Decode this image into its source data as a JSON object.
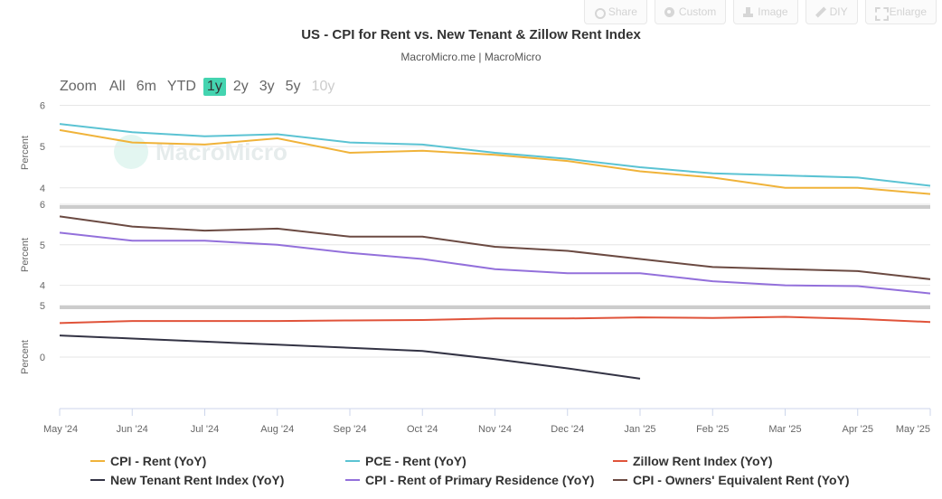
{
  "toolbar": {
    "share": "Share",
    "custom": "Custom",
    "image": "Image",
    "diy": "DIY",
    "enlarge": "Enlarge"
  },
  "title": "US - CPI for Rent vs. New Tenant & Zillow Rent Index",
  "subtitle": "MacroMicro.me | MacroMicro",
  "watermark": "MacroMicro",
  "zoom": {
    "label": "Zoom",
    "options": [
      "All",
      "6m",
      "YTD",
      "1y",
      "2y",
      "3y",
      "5y",
      "10y"
    ],
    "selected": "1y",
    "disabled": [
      "10y"
    ]
  },
  "colors": {
    "cpi_rent": "#f0b33a",
    "pce_rent": "#5bc3d3",
    "zillow": "#e0533a",
    "new_tenant": "#333344",
    "primary_residence": "#9370db",
    "oer": "#6b4a42"
  },
  "chart_data": {
    "type": "line",
    "x": [
      "May '24",
      "Jun '24",
      "Jul '24",
      "Aug '24",
      "Sep '24",
      "Oct '24",
      "Nov '24",
      "Dec '24",
      "Jan '25",
      "Feb '25",
      "Mar '25",
      "Apr '25",
      "May '25"
    ],
    "panels": [
      {
        "ylabel": "Percent",
        "yticks": [
          4,
          5,
          6
        ],
        "ylim": [
          3.6,
          6.1
        ],
        "series": [
          {
            "name": "CPI - Rent (YoY)",
            "color_key": "cpi_rent",
            "values": [
              5.4,
              5.1,
              5.05,
              5.2,
              4.85,
              4.9,
              4.8,
              4.65,
              4.4,
              4.25,
              4.0,
              4.0,
              3.85
            ]
          },
          {
            "name": "PCE - Rent (YoY)",
            "color_key": "pce_rent",
            "values": [
              5.55,
              5.35,
              5.25,
              5.3,
              5.1,
              5.05,
              4.85,
              4.7,
              4.5,
              4.35,
              4.3,
              4.25,
              4.05
            ]
          }
        ]
      },
      {
        "ylabel": "Percent",
        "yticks": [
          4,
          5,
          6
        ],
        "ylim": [
          3.5,
          6.0
        ],
        "series": [
          {
            "name": "CPI - Owners' Equivalent Rent (YoY)",
            "color_key": "oer",
            "values": [
              5.7,
              5.45,
              5.35,
              5.4,
              5.2,
              5.2,
              4.95,
              4.85,
              4.65,
              4.45,
              4.4,
              4.35,
              4.15
            ]
          },
          {
            "name": "CPI - Rent of Primary Residence (YoY)",
            "color_key": "primary_residence",
            "values": [
              5.3,
              5.1,
              5.1,
              5.0,
              4.8,
              4.65,
              4.4,
              4.3,
              4.3,
              4.1,
              4.0,
              3.98,
              3.8
            ]
          }
        ]
      },
      {
        "ylabel": "Percent",
        "yticks": [
          0,
          5
        ],
        "ylim": [
          -5.0,
          5.0
        ],
        "series": [
          {
            "name": "Zillow Rent Index (YoY)",
            "color_key": "zillow",
            "values": [
              3.3,
              3.5,
              3.5,
              3.5,
              3.55,
              3.6,
              3.75,
              3.75,
              3.85,
              3.8,
              3.9,
              3.7,
              3.4
            ]
          },
          {
            "name": "New Tenant Rent Index (YoY)",
            "color_key": "new_tenant",
            "values": [
              2.1,
              1.8,
              1.5,
              1.2,
              0.9,
              0.6,
              -0.2,
              -1.1,
              -2.1,
              null,
              null,
              null,
              null
            ]
          }
        ]
      }
    ],
    "legend": [
      {
        "name": "CPI - Rent (YoY)",
        "color_key": "cpi_rent"
      },
      {
        "name": "PCE - Rent (YoY)",
        "color_key": "pce_rent"
      },
      {
        "name": "Zillow Rent Index (YoY)",
        "color_key": "zillow"
      },
      {
        "name": "New Tenant Rent Index (YoY)",
        "color_key": "new_tenant"
      },
      {
        "name": "CPI - Rent of Primary Residence (YoY)",
        "color_key": "primary_residence"
      },
      {
        "name": "CPI - Owners' Equivalent Rent (YoY)",
        "color_key": "oer"
      }
    ],
    "legend_position": "bottom",
    "grid": true
  }
}
